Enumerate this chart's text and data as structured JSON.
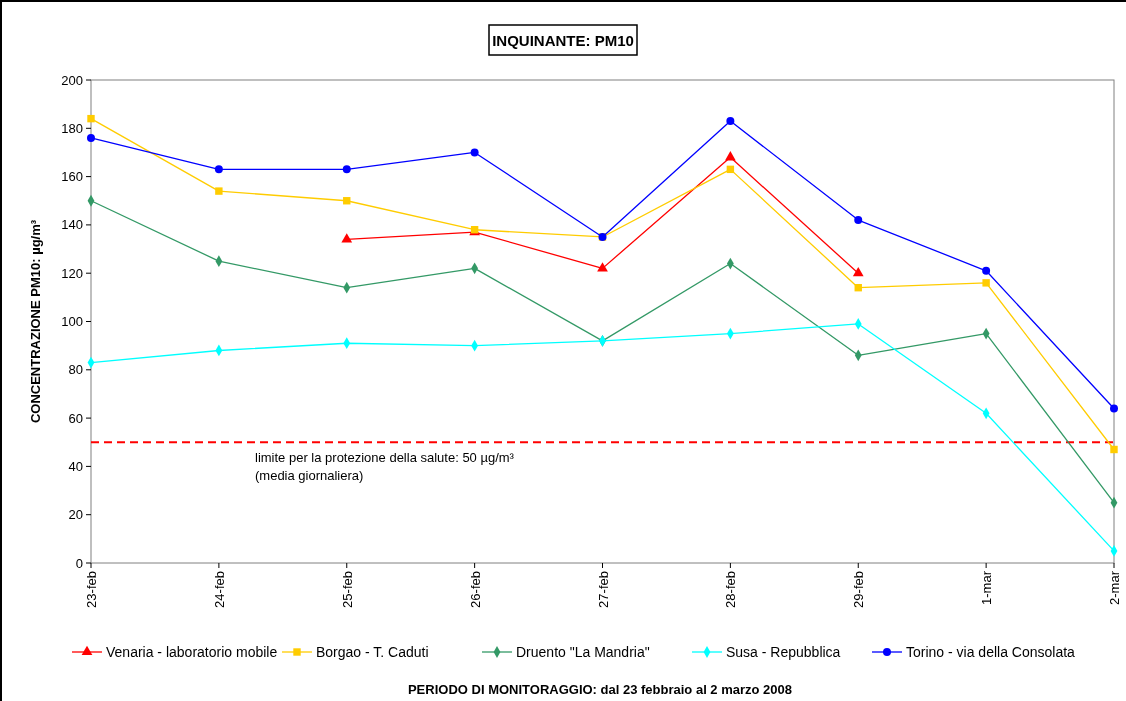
{
  "chart_data": {
    "type": "line",
    "title": "INQUINANTE: PM10",
    "annotations": [
      "PERIODO DI MONITORAGGIO: dal 23 febbraio al 2 marzo 2008"
    ],
    "ylabel": "CONCENTRAZIONE PM10: µg/m³",
    "categories": [
      "23-feb",
      "24-feb",
      "25-feb",
      "26-feb",
      "27-feb",
      "28-feb",
      "29-feb",
      "1-mar",
      "2-mar"
    ],
    "ylim": [
      0,
      200
    ],
    "yticks": [
      0,
      20,
      40,
      60,
      80,
      100,
      120,
      140,
      160,
      180,
      200
    ],
    "grid": false,
    "legend": "bottom",
    "line_style": "solid",
    "series": [
      {
        "name": "Venaria - laboratorio  mobile",
        "color": "#ff0000",
        "marker": "triangle",
        "values": [
          null,
          null,
          134,
          137,
          122,
          168,
          120,
          null,
          null
        ]
      },
      {
        "name": "Borgao - T. Caduti",
        "color": "#ffcc00",
        "marker": "square",
        "values": [
          184,
          154,
          150,
          138,
          135,
          163,
          114,
          116,
          47
        ]
      },
      {
        "name": "Druento \"La Mandria\"",
        "color": "#339966",
        "marker": "diamond",
        "values": [
          150,
          125,
          114,
          122,
          92,
          124,
          86,
          95,
          25
        ]
      },
      {
        "name": "Susa - Repubblica",
        "color": "#00ffff",
        "marker": "diamond",
        "values": [
          83,
          88,
          91,
          90,
          92,
          95,
          99,
          62,
          5
        ]
      },
      {
        "name": "Torino - via della Consolata",
        "color": "#0000ff",
        "marker": "circle",
        "values": [
          176,
          163,
          163,
          170,
          135,
          183,
          142,
          121,
          64
        ]
      }
    ],
    "ref_lines": [
      {
        "axis": "y",
        "value": 50,
        "label": "limite per la protezione della salute: 50 µg/m³\n(media giornaliera)",
        "color": "#ff0000",
        "line_style": "dashed"
      }
    ]
  }
}
